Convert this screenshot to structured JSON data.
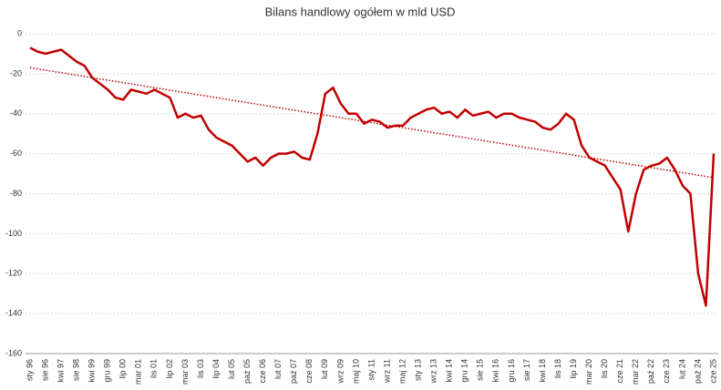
{
  "chart_data": {
    "type": "line",
    "title": "Bilans handlowy ogółem w mld USD",
    "categories": [
      "sty 96",
      null,
      "sie 96",
      null,
      "kwi 97",
      null,
      "sie 98",
      null,
      "kwi 99",
      null,
      "gru 99",
      null,
      "lip 00",
      null,
      "mar 01",
      null,
      "lis 01",
      null,
      "lip 02",
      null,
      "mar 03",
      null,
      "lis 03",
      null,
      "lip 04",
      null,
      "lut 05",
      null,
      "paź 05",
      null,
      "cze 06",
      null,
      "lut 07",
      null,
      "paź 07",
      null,
      "cze 08",
      null,
      "lut 09",
      null,
      "wrz 09",
      null,
      "maj 10",
      null,
      "sty 11",
      null,
      "wrz 11",
      null,
      "maj 12",
      null,
      "sty 13",
      null,
      "wrz 13",
      null,
      "kwi 14",
      null,
      "gru 14",
      null,
      "sie 15",
      null,
      "kwi 16",
      null,
      "gru 16",
      null,
      "sie 17",
      null,
      "kwi 18",
      null,
      "lis 18",
      null,
      "lip 19",
      null,
      "mar 20",
      null,
      "lis 20",
      null,
      "cze 21",
      null,
      "mar 22",
      null,
      "paź 22",
      null,
      "cze 23",
      null,
      "lut 24",
      null,
      "paź 24",
      null,
      "cze 25"
    ],
    "series": [
      {
        "color": "#c00000",
        "values": [
          -7,
          -9,
          -10,
          -9,
          -8,
          -11,
          -14,
          -16,
          -22,
          -25,
          -28,
          -32,
          -33,
          -28,
          -29,
          -30,
          -28,
          -30,
          -32,
          -42,
          -40,
          -42,
          -41,
          -48,
          -52,
          -54,
          -56,
          -60,
          -64,
          -62,
          -66,
          -62,
          -60,
          -60,
          -59,
          -62,
          -63,
          -50,
          -30,
          -27,
          -35,
          -40,
          -40,
          -45,
          -43,
          -44,
          -47,
          -46,
          -46,
          -42,
          -40,
          -38,
          -37,
          -40,
          -39,
          -42,
          -38,
          -41,
          -40,
          -39,
          -42,
          -40,
          -40,
          -42,
          -43,
          -44,
          -47,
          -48,
          -45,
          -40,
          -43,
          -56,
          -62,
          -64,
          -66,
          -72,
          -78,
          -99,
          -80,
          -68,
          -66,
          -65,
          -62,
          -68,
          -76,
          -80,
          -120,
          -136,
          -60
        ]
      }
    ],
    "trend": {
      "color": "#c00000",
      "values": [
        -17,
        -72
      ]
    },
    "ylim": [
      -160,
      0
    ],
    "yticks": [
      -160,
      -140,
      -120,
      -100,
      -80,
      -60,
      -40,
      -20,
      0
    ],
    "grid": true
  }
}
